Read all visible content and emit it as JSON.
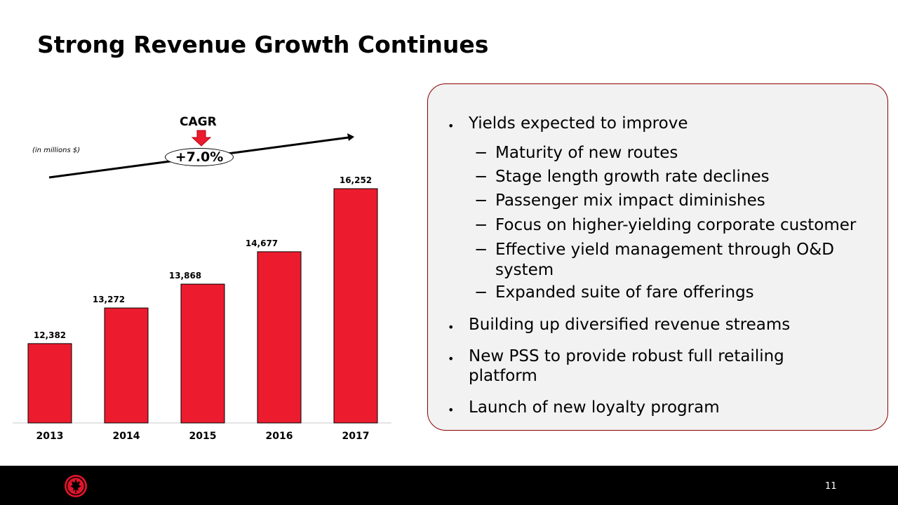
{
  "slide": {
    "title": "Strong Revenue Growth Continues",
    "unit_note": "(in millions $)",
    "cagr_label": "CAGR",
    "cagr_value": "+7.0%",
    "page_number": "11"
  },
  "panel": {
    "bullets": [
      {
        "text": "Yields expected to improve",
        "subs": [
          "Maturity of new routes",
          "Stage length growth rate declines",
          "Passenger mix impact diminishes",
          "Focus on higher-yielding corporate customer",
          [
            "Effective yield management through O&D",
            "system"
          ],
          "Expanded suite of fare offerings"
        ]
      },
      {
        "text": "Building up diversified revenue streams"
      },
      {
        "text": [
          "New PSS to provide robust full retailing",
          "platform"
        ]
      },
      {
        "text": "Launch of new loyalty program"
      }
    ]
  },
  "chart_data": {
    "type": "bar",
    "categories": [
      "2013",
      "2014",
      "2015",
      "2016",
      "2017"
    ],
    "values": [
      12382,
      13272,
      13868,
      14677,
      16252
    ],
    "value_labels": [
      "12,382",
      "13,272",
      "13,868",
      "14,677",
      "16,252"
    ],
    "bar_color": "#ed1b2e",
    "title": "",
    "xlabel": "",
    "ylabel": ""
  },
  "colors": {
    "accent_red": "#ed1b2e",
    "panel_border": "#8b0000",
    "panel_bg": "#f2f2f2",
    "footer_bg": "#000000"
  },
  "icons": {
    "cagr_arrow": "down-arrow-icon",
    "trend_arrow": "trend-arrow-icon",
    "logo": "maple-leaf-logo-icon"
  }
}
